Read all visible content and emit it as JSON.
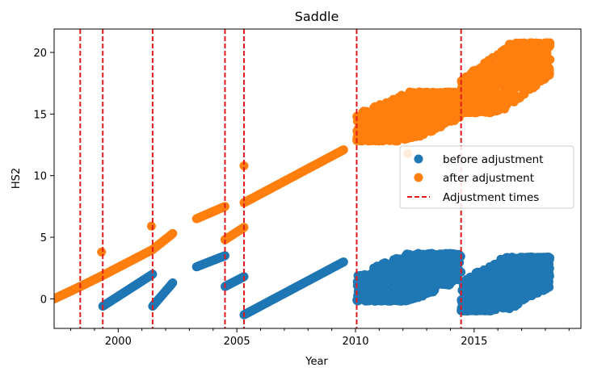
{
  "chart_data": {
    "type": "scatter",
    "title": "Saddle",
    "xlabel": "Year",
    "ylabel": "HS2",
    "xlim": [
      1997.3,
      2019.5
    ],
    "ylim": [
      -2.4,
      21.9
    ],
    "xticks": [
      2000,
      2005,
      2010,
      2015
    ],
    "xtick_labels": [
      "2000",
      "2005",
      "2010",
      "2015"
    ],
    "yticks": [
      0,
      5,
      10,
      15,
      20
    ],
    "ytick_labels": [
      "0",
      "5",
      "10",
      "15",
      "20"
    ],
    "grid": false,
    "legend_position": "center-right",
    "adjustment_times": [
      1998.4,
      1999.35,
      2001.45,
      2004.5,
      2005.3,
      2010.05,
      2014.45
    ],
    "series": [
      {
        "name": "before adjustment",
        "color": "#1f77b4",
        "marker": "circle",
        "segments": [
          {
            "x": [
              1997.3,
              1998.4
            ],
            "y": [
              0.0,
              1.0
            ]
          },
          {
            "x": [
              1998.4,
              1999.35
            ],
            "y": [
              1.0,
              1.9
            ]
          },
          {
            "x": [
              1999.35,
              2001.45
            ],
            "y": [
              -0.6,
              2.0
            ]
          },
          {
            "x": [
              2001.45,
              2002.3
            ],
            "y": [
              -0.6,
              1.3
            ]
          },
          {
            "x": [
              2003.3,
              2004.5
            ],
            "y": [
              2.6,
              3.5
            ]
          },
          {
            "x": [
              2004.5,
              2005.3
            ],
            "y": [
              1.0,
              1.8
            ]
          },
          {
            "x": [
              2005.3,
              2009.5
            ],
            "y": [
              -1.3,
              3.0
            ]
          },
          {
            "x": [
              2010.05,
              2014.45
            ],
            "y": [
              0.0,
              3.5
            ],
            "scatter": 4.0
          },
          {
            "x": [
              2014.45,
              2018.2
            ],
            "y": [
              -0.8,
              3.2
            ],
            "scatter": 4.5
          }
        ]
      },
      {
        "name": "after adjustment",
        "color": "#ff7f0e",
        "marker": "circle",
        "segments": [
          {
            "x": [
              1997.3,
              1998.4
            ],
            "y": [
              0.0,
              1.0
            ]
          },
          {
            "x": [
              1998.4,
              1999.35
            ],
            "y": [
              1.0,
              1.9
            ]
          },
          {
            "x": [
              1999.35,
              2001.45
            ],
            "y": [
              1.9,
              4.0
            ]
          },
          {
            "x": [
              2001.45,
              2002.3
            ],
            "y": [
              4.0,
              5.3
            ]
          },
          {
            "x": [
              2003.3,
              2004.5
            ],
            "y": [
              6.5,
              7.5
            ]
          },
          {
            "x": [
              2004.5,
              2005.3
            ],
            "y": [
              4.8,
              5.8
            ]
          },
          {
            "x": [
              2005.3,
              2009.5
            ],
            "y": [
              7.8,
              12.1
            ]
          },
          {
            "x": [
              2010.05,
              2014.45
            ],
            "y": [
              13.0,
              16.6
            ],
            "scatter": 4.0
          },
          {
            "x": [
              2014.45,
              2018.2
            ],
            "y": [
              15.3,
              20.6
            ],
            "scatter": 5.0
          }
        ],
        "outliers": [
          {
            "x": 1999.3,
            "y": 3.8
          },
          {
            "x": 2001.4,
            "y": 5.9
          },
          {
            "x": 2004.5,
            "y": 4.8
          },
          {
            "x": 2005.3,
            "y": 10.8
          },
          {
            "x": 2012.2,
            "y": 11.8
          }
        ]
      }
    ],
    "adjustment_line": {
      "name": "Adjustment times",
      "color": "#e31a1c",
      "style": "dashed"
    }
  }
}
